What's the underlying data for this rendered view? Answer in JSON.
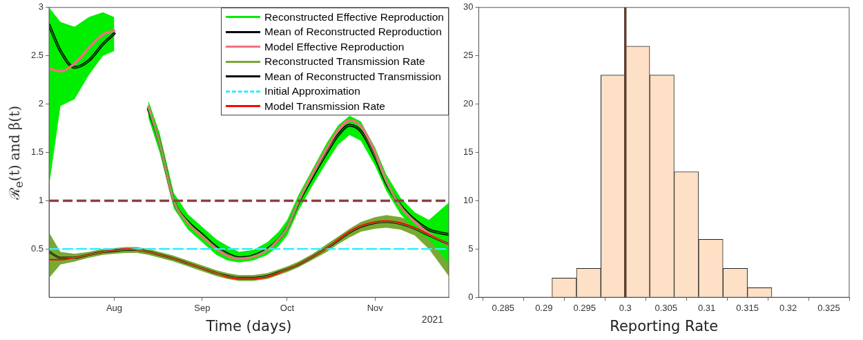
{
  "chart_data": [
    {
      "type": "line",
      "xlabel": "Time (days)",
      "ylabel": "ℛ$_{e}$(t) and β(t)",
      "x": [
        "2021-07-09",
        "2021-07-13",
        "2021-07-18",
        "2021-07-23",
        "2021-07-28",
        "2021-08-01",
        "2021-08-05",
        "2021-08-09",
        "2021-08-13",
        "2021-08-17",
        "2021-08-22",
        "2021-08-27",
        "2021-09-01",
        "2021-09-06",
        "2021-09-10",
        "2021-09-14",
        "2021-09-19",
        "2021-09-24",
        "2021-09-28",
        "2021-10-01",
        "2021-10-05",
        "2021-10-10",
        "2021-10-15",
        "2021-10-19",
        "2021-10-23",
        "2021-10-27",
        "2021-11-01",
        "2021-11-05",
        "2021-11-10",
        "2021-11-15",
        "2021-11-20",
        "2021-11-27"
      ],
      "xlim": [
        "2021-07-09",
        "2021-11-27"
      ],
      "xticks": [
        {
          "value": "2021-08-01",
          "label": "Aug"
        },
        {
          "value": "2021-09-01",
          "label": "Sep"
        },
        {
          "value": "2021-10-01",
          "label": "Oct"
        },
        {
          "value": "2021-11-01",
          "label": "Nov"
        }
      ],
      "ylim": [
        0,
        3
      ],
      "yticks": [
        0.5,
        1,
        1.5,
        2,
        2.5,
        3
      ],
      "legend": "top right",
      "series": [
        {
          "name": "Reconstructed Effective Reproduction",
          "color": "#00ee00",
          "values": [
            2.82,
            2.55,
            2.38,
            2.45,
            2.62,
            2.73,
            null,
            null,
            1.95,
            1.6,
            1.0,
            0.78,
            0.65,
            0.52,
            0.45,
            0.41,
            0.43,
            0.5,
            0.6,
            0.72,
            0.98,
            1.25,
            1.5,
            1.68,
            1.78,
            1.72,
            1.45,
            1.18,
            0.95,
            0.8,
            0.7,
            0.65
          ],
          "lower": [
            1.15,
            1.98,
            2.05,
            2.3,
            2.5,
            2.55,
            null,
            null,
            1.86,
            1.5,
            0.92,
            0.7,
            0.57,
            0.44,
            0.38,
            0.36,
            0.38,
            0.44,
            0.53,
            0.64,
            0.9,
            1.16,
            1.4,
            1.58,
            1.68,
            1.62,
            1.36,
            1.1,
            0.86,
            0.7,
            0.6,
            0.35
          ],
          "upper": [
            3.0,
            2.85,
            2.8,
            2.9,
            2.95,
            2.9,
            null,
            null,
            2.04,
            1.7,
            1.08,
            0.86,
            0.73,
            0.6,
            0.53,
            0.47,
            0.49,
            0.57,
            0.68,
            0.8,
            1.06,
            1.33,
            1.6,
            1.78,
            1.88,
            1.82,
            1.55,
            1.27,
            1.03,
            0.88,
            0.8,
            0.98
          ]
        },
        {
          "name": "Mean of Reconstructed Reproduction",
          "color": "#000000",
          "values": [
            2.82,
            2.55,
            2.38,
            2.45,
            2.62,
            2.73,
            null,
            null,
            1.95,
            1.6,
            1.0,
            0.78,
            0.65,
            0.52,
            0.45,
            0.41,
            0.43,
            0.5,
            0.6,
            0.72,
            0.98,
            1.25,
            1.5,
            1.68,
            1.78,
            1.72,
            1.45,
            1.18,
            0.95,
            0.8,
            0.7,
            0.65
          ]
        },
        {
          "name": "Model Effective Reproduction",
          "color": "#f07080",
          "values": [
            2.37,
            2.34,
            2.42,
            2.58,
            2.72,
            2.76,
            null,
            null,
            1.97,
            1.6,
            1.0,
            0.77,
            0.63,
            0.5,
            0.43,
            0.4,
            0.42,
            0.49,
            0.6,
            0.72,
            0.99,
            1.28,
            1.54,
            1.73,
            1.83,
            1.77,
            1.5,
            1.2,
            0.94,
            0.78,
            0.66,
            0.54
          ]
        },
        {
          "name": "Reconstructed Transmission Rate",
          "color": "#77aa33",
          "values": [
            0.47,
            0.41,
            0.41,
            0.44,
            0.47,
            0.48,
            0.49,
            0.49,
            0.47,
            0.44,
            0.4,
            0.35,
            0.3,
            0.25,
            0.22,
            0.2,
            0.2,
            0.22,
            0.26,
            0.29,
            0.34,
            0.42,
            0.51,
            0.59,
            0.67,
            0.73,
            0.77,
            0.78,
            0.76,
            0.71,
            0.64,
            0.55
          ],
          "lower": [
            0.2,
            0.34,
            0.37,
            0.41,
            0.44,
            0.45,
            0.46,
            0.46,
            0.44,
            0.41,
            0.37,
            0.32,
            0.27,
            0.22,
            0.19,
            0.17,
            0.17,
            0.19,
            0.23,
            0.26,
            0.31,
            0.39,
            0.47,
            0.55,
            0.62,
            0.68,
            0.71,
            0.72,
            0.7,
            0.64,
            0.5,
            0.22
          ],
          "upper": [
            0.67,
            0.47,
            0.45,
            0.47,
            0.5,
            0.51,
            0.52,
            0.52,
            0.5,
            0.47,
            0.43,
            0.38,
            0.33,
            0.28,
            0.25,
            0.23,
            0.23,
            0.25,
            0.29,
            0.32,
            0.37,
            0.45,
            0.55,
            0.63,
            0.71,
            0.78,
            0.83,
            0.85,
            0.83,
            0.78,
            0.72,
            0.8
          ]
        },
        {
          "name": "Mean of Reconstructed Transmission",
          "color": "#000000",
          "values": [
            0.47,
            0.41,
            0.41,
            0.44,
            0.47,
            0.48,
            0.49,
            0.49,
            0.47,
            0.44,
            0.4,
            0.35,
            0.3,
            0.25,
            0.22,
            0.2,
            0.2,
            0.22,
            0.26,
            0.29,
            0.34,
            0.42,
            0.51,
            0.59,
            0.67,
            0.73,
            0.77,
            0.78,
            0.76,
            0.71,
            0.64,
            0.55
          ]
        },
        {
          "name": "Initial Approximation",
          "color": "#33eeff",
          "line_style": "dashed",
          "x": [
            "2021-07-09",
            "2021-11-27"
          ],
          "values": [
            0.5,
            0.5
          ]
        },
        {
          "name": "Model Transmission Rate",
          "color": "#ff0000",
          "values": [
            0.39,
            0.39,
            0.41,
            0.44,
            0.47,
            0.49,
            0.5,
            0.49,
            0.47,
            0.44,
            0.4,
            0.35,
            0.3,
            0.25,
            0.21,
            0.19,
            0.19,
            0.21,
            0.25,
            0.29,
            0.34,
            0.42,
            0.51,
            0.6,
            0.68,
            0.74,
            0.78,
            0.79,
            0.77,
            0.72,
            0.65,
            0.55
          ]
        }
      ],
      "ref_lines": [
        {
          "axis": "y",
          "value": 1,
          "color": "#8b4040",
          "line_style": "dashed"
        }
      ],
      "annotations": [
        "2021"
      ]
    },
    {
      "type": "histogram",
      "xlabel": "Reporting Rate",
      "bins": [
        0.291,
        0.294,
        0.297,
        0.3,
        0.303,
        0.306,
        0.309,
        0.312,
        0.315,
        0.318
      ],
      "values": [
        2,
        3,
        23,
        26,
        23,
        13,
        6,
        3,
        1
      ],
      "color": "#fde0c5",
      "xlim": [
        0.282,
        0.3275
      ],
      "xticks": [
        0.285,
        0.29,
        0.295,
        0.3,
        0.305,
        0.31,
        0.315,
        0.32,
        0.325
      ],
      "ylim": [
        0,
        30
      ],
      "yticks": [
        0,
        5,
        10,
        15,
        20,
        25,
        30
      ],
      "ref_lines": [
        {
          "axis": "x",
          "value": 0.3,
          "color": "#5c4030"
        }
      ]
    }
  ]
}
